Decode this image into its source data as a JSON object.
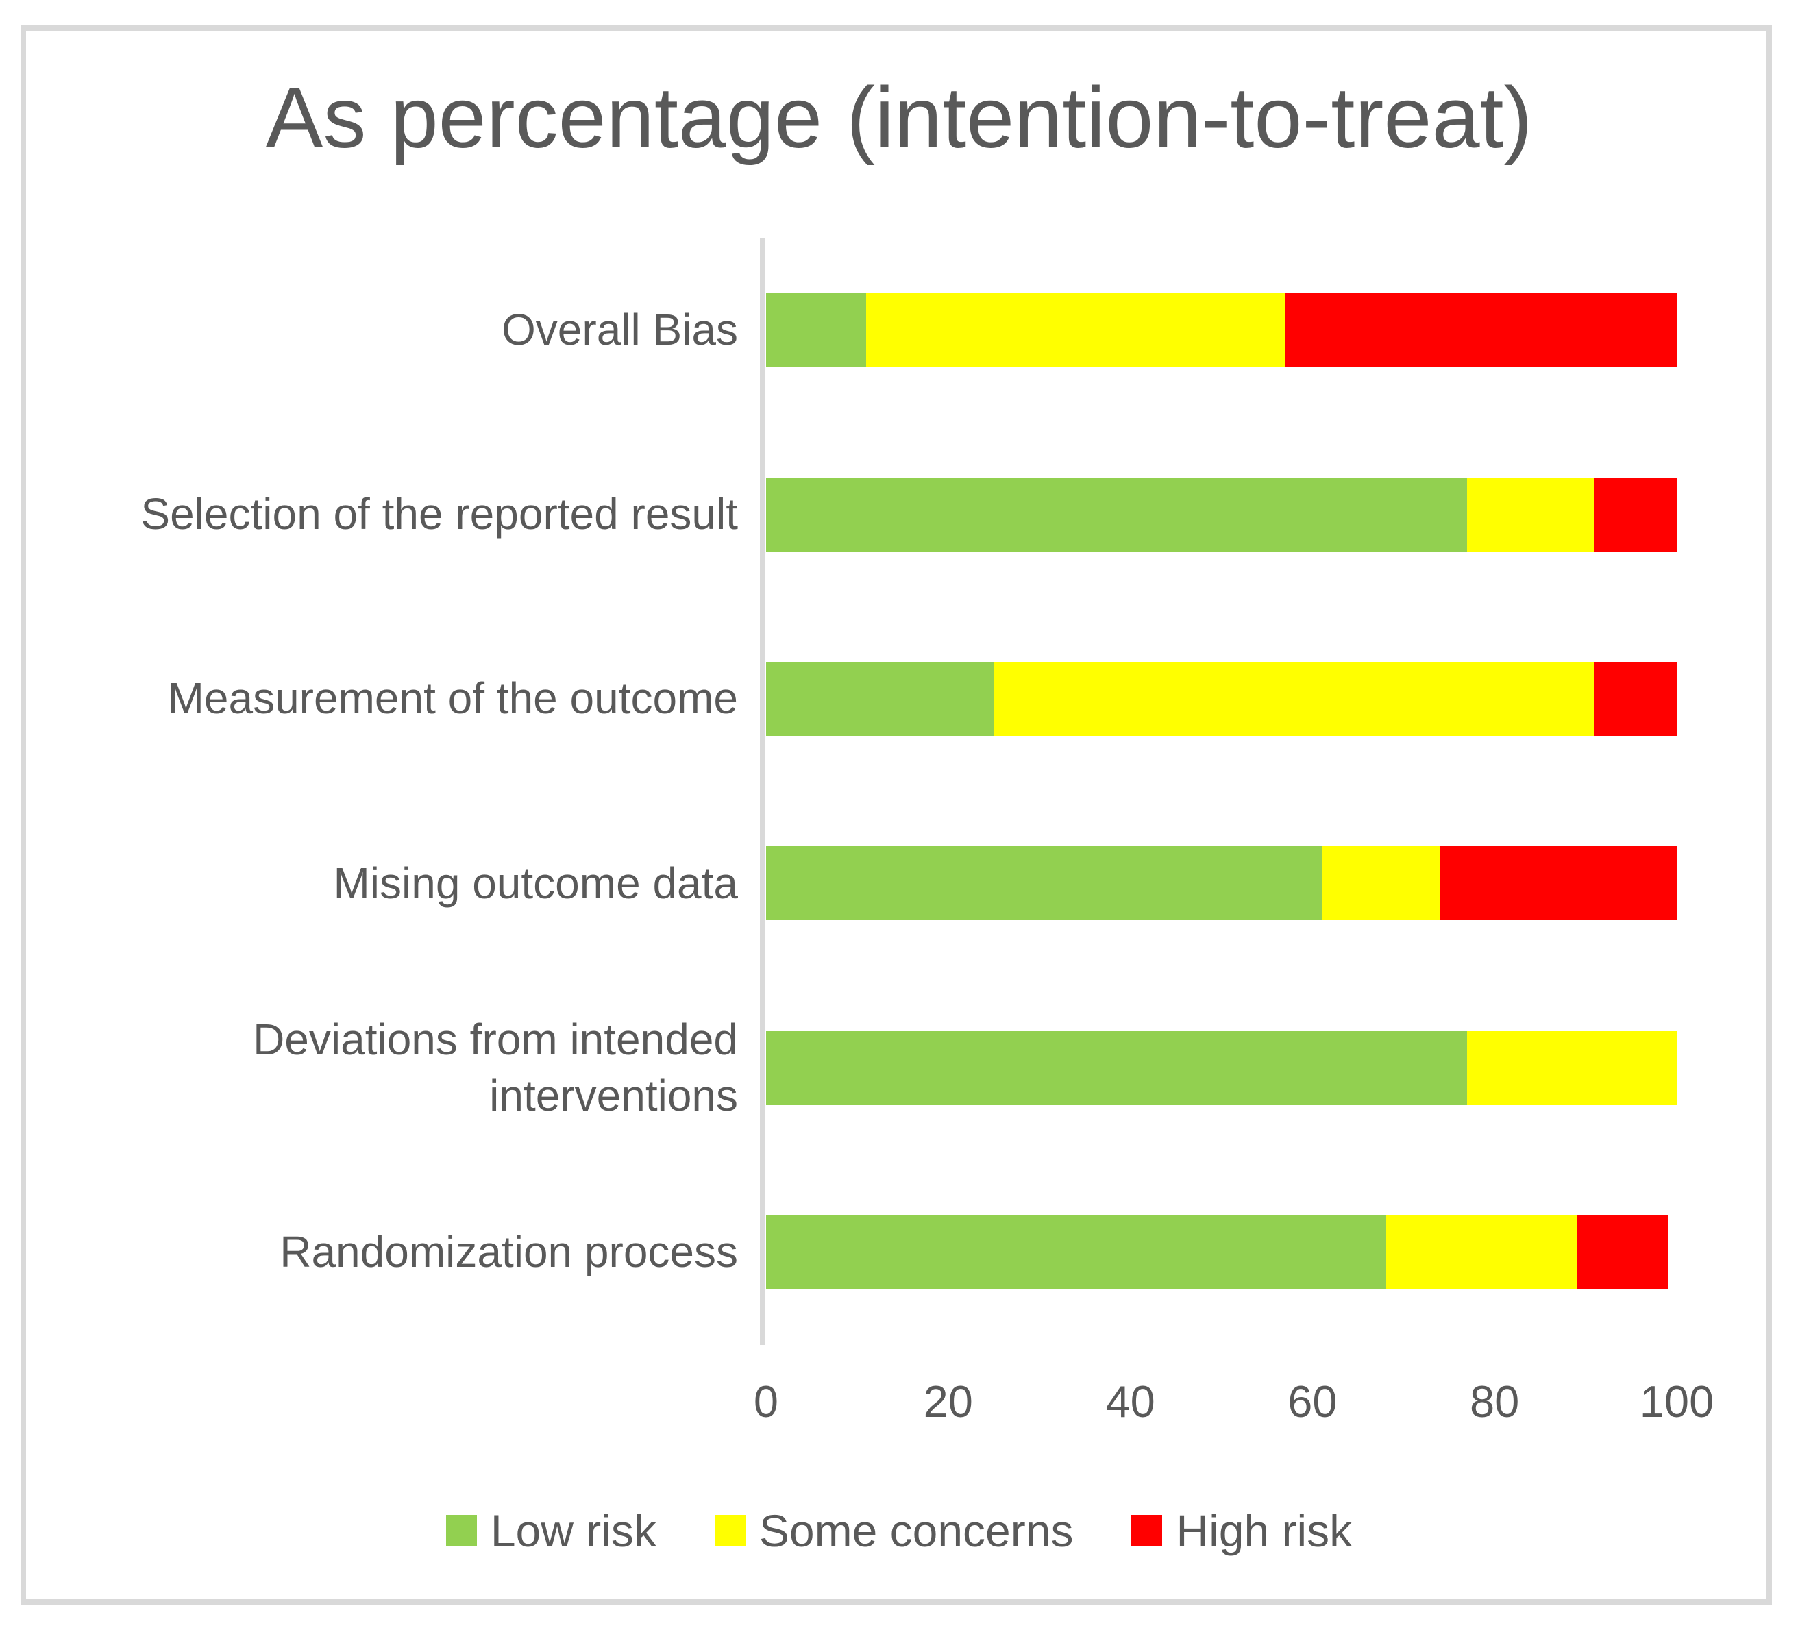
{
  "chart_data": {
    "type": "bar",
    "orientation": "horizontal",
    "stacked": true,
    "title": "As percentage (intention-to-treat)",
    "categories": [
      "Overall Bias",
      "Selection of the reported result",
      "Measurement of the outcome",
      "Mising outcome data",
      "Deviations from intended interventions",
      "Randomization process"
    ],
    "series": [
      {
        "name": "Low risk",
        "color": "#92D050",
        "values": [
          11,
          77,
          25,
          61,
          77,
          68
        ]
      },
      {
        "name": "Some concerns",
        "color": "#FFFF00",
        "values": [
          46,
          14,
          66,
          13,
          23,
          21
        ]
      },
      {
        "name": "High risk",
        "color": "#FF0000",
        "values": [
          43,
          9,
          9,
          26,
          0,
          10
        ]
      }
    ],
    "x_axis": {
      "min": 0,
      "max": 100,
      "ticks": [
        "0",
        "20",
        "40",
        "60",
        "80",
        "100"
      ]
    },
    "y_axis_label": "",
    "xlabel": "",
    "gridlines": false,
    "legend_position": "bottom"
  },
  "colors": {
    "text": "#595959",
    "axis_line": "#D9D9D9",
    "frame_border": "#D9D9D9",
    "background": "#FFFFFF"
  }
}
